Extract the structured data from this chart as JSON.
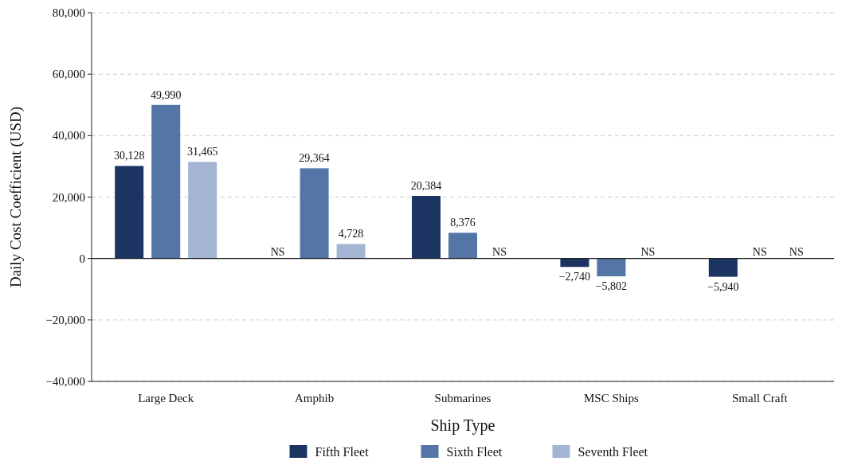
{
  "chart_data": {
    "type": "bar",
    "xlabel": "Ship Type",
    "ylabel": "Daily Cost Coefficient (USD)",
    "categories": [
      "Large Deck",
      "Amphib",
      "Submarines",
      "MSC Ships",
      "Small Craft"
    ],
    "series": [
      {
        "name": "Fifth Fleet",
        "color": "#1b3461",
        "values": [
          30128,
          null,
          20384,
          -2740,
          -5940
        ],
        "value_labels": [
          "30,128",
          "NS",
          "20,384",
          "−2,740",
          "−5,940"
        ]
      },
      {
        "name": "Sixth Fleet",
        "color": "#5476a6",
        "values": [
          49990,
          29364,
          8376,
          -5802,
          null
        ],
        "value_labels": [
          "49,990",
          "29,364",
          "8,376",
          "−5,802",
          "NS"
        ]
      },
      {
        "name": "Seventh Fleet",
        "color": "#a3b5d3",
        "values": [
          31465,
          4728,
          null,
          null,
          null
        ],
        "value_labels": [
          "31,465",
          "4,728",
          "NS",
          "NS",
          "NS"
        ]
      }
    ],
    "ylim": [
      -40000,
      80000
    ],
    "yticks": [
      {
        "value": -40000,
        "label": "−40,000"
      },
      {
        "value": -20000,
        "label": "−20,000"
      },
      0,
      {
        "value": 20000,
        "label": "20,000"
      },
      {
        "value": 40000,
        "label": "40,000"
      },
      {
        "value": 60000,
        "label": "60,000"
      },
      {
        "value": 80000,
        "label": "80,000"
      }
    ],
    "grid": "y",
    "legend": "bottom"
  }
}
